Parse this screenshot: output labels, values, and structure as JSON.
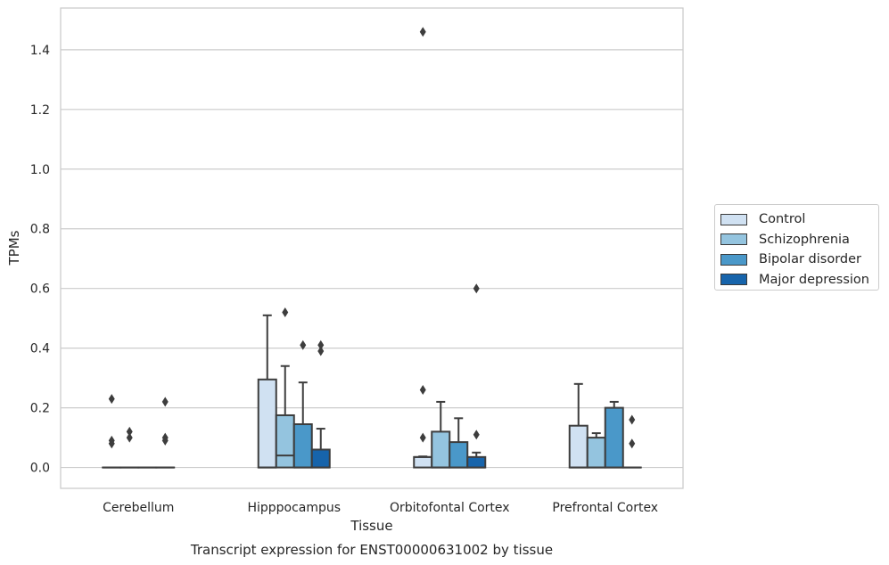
{
  "chart_data": {
    "type": "box",
    "title": "",
    "caption": "Transcript expression for ENST00000631002 by tissue",
    "xlabel": "Tissue",
    "ylabel": "TPMs",
    "ylim": [
      -0.07,
      1.54
    ],
    "yticks": [
      "0.0",
      "0.2",
      "0.4",
      "0.6",
      "0.8",
      "1.0",
      "1.2",
      "1.4"
    ],
    "grid": "horizontal",
    "legend_position": "right",
    "categories": [
      "Cerebellum",
      "Hipppocampus",
      "Orbitofontal Cortex",
      "Prefrontal Cortex"
    ],
    "series": [
      {
        "name": "Control",
        "color": "#d0e1f2",
        "boxes": [
          {
            "q1": 0,
            "median": 0,
            "q3": 0,
            "whisker_low": 0,
            "whisker_high": 0,
            "outliers": [
              0.23,
              0.09,
              0.08
            ]
          },
          {
            "q1": 0,
            "median": 0,
            "q3": 0.295,
            "whisker_low": 0,
            "whisker_high": 0.51,
            "outliers": []
          },
          {
            "q1": 0,
            "median": 0.035,
            "q3": 0.035,
            "whisker_low": 0,
            "whisker_high": 0.037,
            "outliers": [
              1.46,
              0.26,
              0.1
            ]
          },
          {
            "q1": 0,
            "median": 0,
            "q3": 0.14,
            "whisker_low": 0,
            "whisker_high": 0.28,
            "outliers": []
          }
        ]
      },
      {
        "name": "Schizophrenia",
        "color": "#94c4df",
        "boxes": [
          {
            "q1": 0,
            "median": 0,
            "q3": 0,
            "whisker_low": 0,
            "whisker_high": 0,
            "outliers": [
              0.12,
              0.1
            ]
          },
          {
            "q1": 0,
            "median": 0.04,
            "q3": 0.175,
            "whisker_low": 0,
            "whisker_high": 0.34,
            "outliers": [
              0.52
            ]
          },
          {
            "q1": 0,
            "median": 0,
            "q3": 0.12,
            "whisker_low": 0,
            "whisker_high": 0.22,
            "outliers": []
          },
          {
            "q1": 0,
            "median": 0,
            "q3": 0.1,
            "whisker_low": 0,
            "whisker_high": 0.115,
            "outliers": []
          }
        ]
      },
      {
        "name": "Bipolar disorder",
        "color": "#4a98c9",
        "boxes": [
          {
            "q1": 0,
            "median": 0,
            "q3": 0,
            "whisker_low": 0,
            "whisker_high": 0,
            "outliers": []
          },
          {
            "q1": 0,
            "median": 0,
            "q3": 0.145,
            "whisker_low": 0,
            "whisker_high": 0.285,
            "outliers": [
              0.41
            ]
          },
          {
            "q1": 0,
            "median": 0,
            "q3": 0.085,
            "whisker_low": 0,
            "whisker_high": 0.165,
            "outliers": []
          },
          {
            "q1": 0,
            "median": 0,
            "q3": 0.2,
            "whisker_low": 0,
            "whisker_high": 0.22,
            "outliers": []
          }
        ]
      },
      {
        "name": "Major depression",
        "color": "#1764ab",
        "boxes": [
          {
            "q1": 0,
            "median": 0,
            "q3": 0,
            "whisker_low": 0,
            "whisker_high": 0,
            "outliers": [
              0.22,
              0.1,
              0.09
            ]
          },
          {
            "q1": 0,
            "median": 0,
            "q3": 0.06,
            "whisker_low": 0,
            "whisker_high": 0.13,
            "outliers": [
              0.41,
              0.39
            ]
          },
          {
            "q1": 0,
            "median": 0,
            "q3": 0.035,
            "whisker_low": 0,
            "whisker_high": 0.05,
            "outliers": [
              0.6,
              0.11
            ]
          },
          {
            "q1": 0,
            "median": 0,
            "q3": 0,
            "whisker_low": 0,
            "whisker_high": 0,
            "outliers": [
              0.16,
              0.08
            ]
          }
        ]
      }
    ]
  }
}
